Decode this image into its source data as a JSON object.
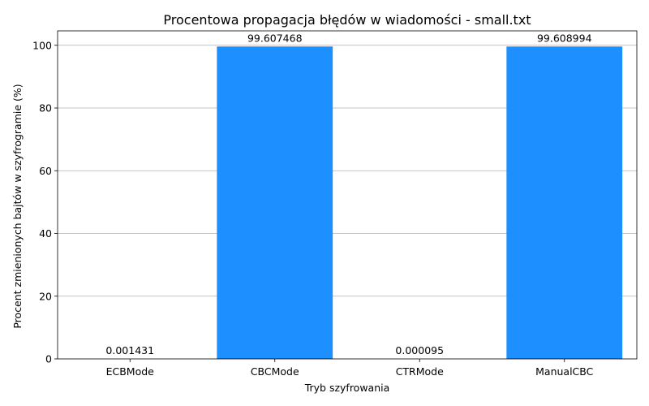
{
  "chart_data": {
    "type": "bar",
    "title": "Procentowa propagacja błędów w wiadomości - small.txt",
    "xlabel": "Tryb szyfrowania",
    "ylabel": "Procent zmienionych bajtów w szyfrogramie (%)",
    "categories": [
      "ECBMode",
      "CBCMode",
      "CTRMode",
      "ManualCBC"
    ],
    "values": [
      0.001431,
      99.607468,
      9.5e-05,
      99.608994
    ],
    "value_labels": [
      "0.001431",
      "99.607468",
      "0.000095",
      "99.608994"
    ],
    "ylim": [
      0,
      104.6
    ],
    "yticks": [
      0,
      20,
      40,
      60,
      80,
      100
    ],
    "grid": "y",
    "bar_color": "#1e8fff"
  }
}
